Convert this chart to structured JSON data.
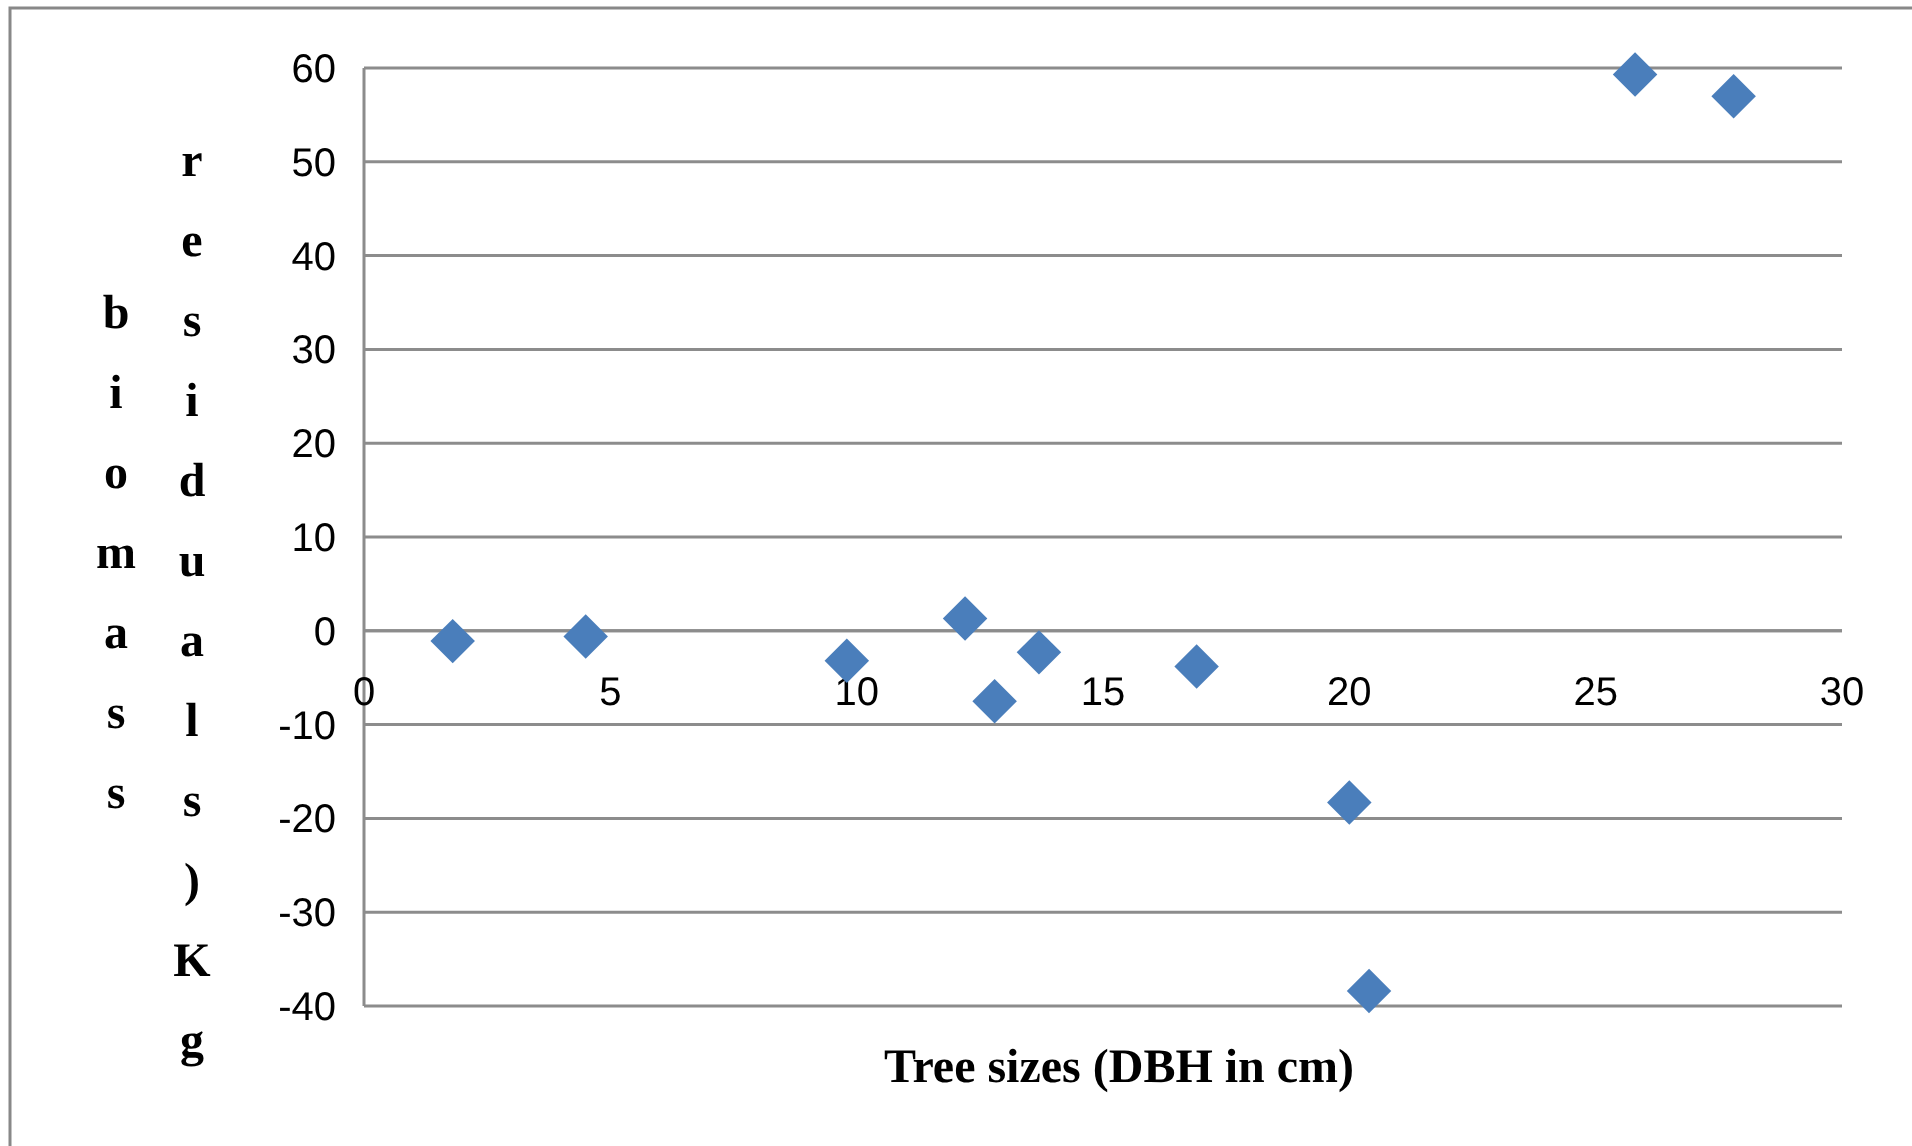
{
  "chart_data": {
    "type": "scatter",
    "xlabel": "Tree sizes (DBH in cm)",
    "ylabel": "biomass residuals)Kg",
    "x": [
      1.8,
      4.5,
      9.8,
      12.2,
      12.8,
      13.7,
      16.9,
      20.0,
      20.4,
      25.8,
      27.8
    ],
    "series": [
      {
        "color": "#4a7ebb",
        "values": [
          -1.1,
          -0.6,
          -3.2,
          1.3,
          -7.5,
          -2.3,
          -3.8,
          -18.3,
          -38.4,
          59.3,
          57.0
        ]
      }
    ],
    "xlim": [
      0,
      30
    ],
    "xticks": [
      0,
      5,
      10,
      15,
      20,
      25,
      30
    ],
    "ylim": [
      -40,
      60
    ],
    "yticks": [
      -40,
      -30,
      -20,
      -10,
      0,
      10,
      20,
      30,
      40,
      50,
      60
    ],
    "grid": "y",
    "marker": "diamond"
  }
}
